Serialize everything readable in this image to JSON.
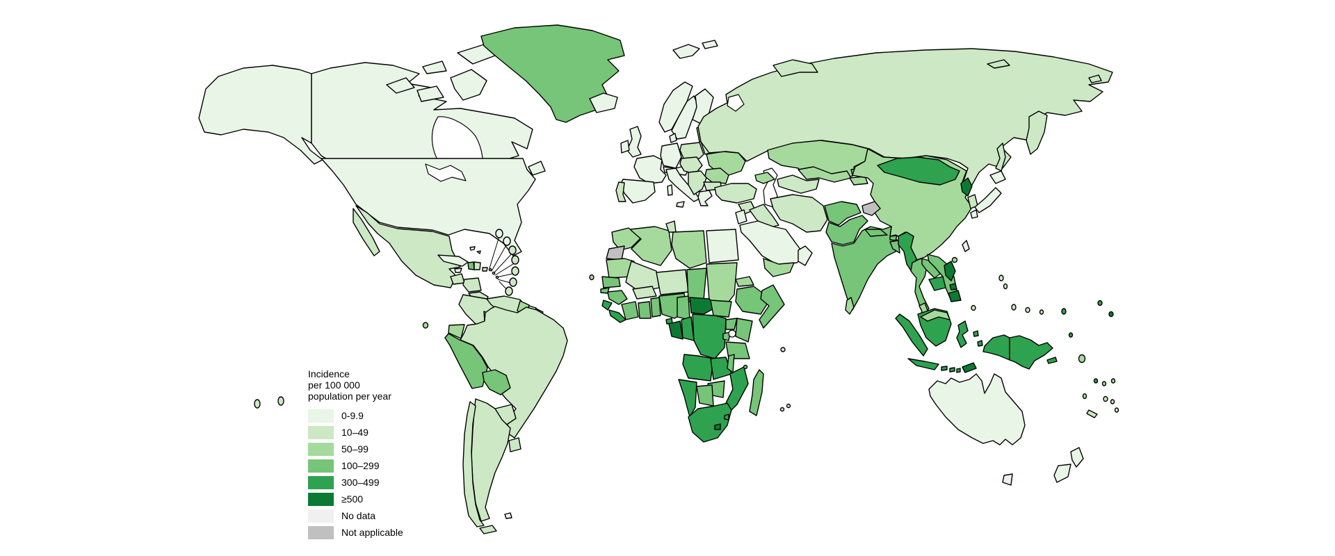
{
  "legend": {
    "title_lines": [
      "Incidence",
      "per 100 000",
      "population per year"
    ],
    "items": [
      {
        "label": "0-9.9",
        "key": "cat0",
        "color": "#e9f5e6"
      },
      {
        "label": "10–49",
        "key": "cat1",
        "color": "#cce8c4"
      },
      {
        "label": "50–99",
        "key": "cat2",
        "color": "#a6da9d"
      },
      {
        "label": "100–299",
        "key": "cat3",
        "color": "#76c578"
      },
      {
        "label": "300–499",
        "key": "cat4",
        "color": "#2ea24f"
      },
      {
        "label": "≥500",
        "key": "cat5",
        "color": "#0d7a34"
      },
      {
        "label": "No data",
        "key": "nodata",
        "color": "#f0f0f0"
      },
      {
        "label": "Not applicable",
        "key": "na",
        "color": "#c0c0c0"
      }
    ]
  },
  "map": {
    "sea_color": "#ffffff",
    "border_color": "#000000",
    "category_colors": {
      "cat0": "#e9f5e6",
      "cat1": "#cce8c4",
      "cat2": "#a6da9d",
      "cat3": "#76c578",
      "cat4": "#2ea24f",
      "cat5": "#0d7a34",
      "nodata": "#f0f0f0",
      "na": "#c0c0c0"
    },
    "regions": {
      "alaska": "cat0",
      "canada": "cat0",
      "arctic-1": "cat0",
      "arctic-2": "cat0",
      "arctic-3": "cat0",
      "arctic-4": "cat0",
      "arctic-5": "cat0",
      "newfoundland": "cat0",
      "usa": "cat0",
      "greenland": "cat3",
      "iceland": "cat0",
      "mexico": "cat1",
      "baja": "cat1",
      "guatemala": "cat1",
      "honduras-nicaragua": "cat1",
      "costarica-panama": "cat1",
      "cuba": "cat0",
      "jamaica": "cat0",
      "haiti": "cat3",
      "dominican-republic": "cat1",
      "puerto-rico": "cat1",
      "bahamas-1": "cat0",
      "bahamas-2": "cat0",
      "carib-1": "cat0",
      "carib-2": "cat0",
      "carib-3": "cat1",
      "carib-4": "cat1",
      "carib-5": "cat1",
      "carib-6": "cat1",
      "carib-7": "cat1",
      "carib-dot-1": "cat1",
      "carib-dot-2": "cat1",
      "carib-dot-3": "cat1",
      "colombia": "cat1",
      "venezuela": "cat1",
      "guyana": "cat2",
      "suriname": "cat1",
      "french-guiana": "cat1",
      "ecuador": "cat2",
      "galapagos": "cat2",
      "peru": "cat3",
      "brazil": "cat1",
      "bolivia": "cat3",
      "paraguay": "cat1",
      "uruguay": "cat1",
      "chile": "cat1",
      "argentina": "cat1",
      "tierra-del-fuego": "cat1",
      "falklands": "nodata",
      "french-polynesia-1": "cat1",
      "french-polynesia-2": "cat1",
      "uk": "cat0",
      "ireland": "cat0",
      "norway": "cat0",
      "sweden": "cat0",
      "finland": "cat0",
      "denmark": "cat0",
      "germany": "cat0",
      "france": "cat0",
      "spain": "cat0",
      "portugal": "cat1",
      "italy": "cat0",
      "sicily": "cat0",
      "sardinia": "cat0",
      "switzerland-austria": "cat0",
      "czech-hungary": "cat1",
      "poland": "cat1",
      "baltics": "cat2",
      "belarus": "cat1",
      "ukraine": "cat2",
      "romania-moldova": "cat2",
      "balkans": "cat1",
      "bulgaria": "cat1",
      "greece": "cat0",
      "russia": "cat1",
      "svalbard-1": "cat0",
      "svalbard-2": "cat0",
      "novaya-zemlya": "cat1",
      "wrangel": "cat1",
      "new-siberian": "cat1",
      "sakhalin": "cat1",
      "kamchatka": "cat1",
      "kazakhstan": "cat2",
      "uzbekistan": "cat2",
      "turkmenistan": "cat1",
      "kyrgyzstan": "cat3",
      "tajikistan": "cat2",
      "turkey": "cat1",
      "caucasus": "cat2",
      "syria": "cat1",
      "iraq": "cat1",
      "jordan-israel": "cat0",
      "saudi-arabia": "cat0",
      "yemen": "cat2",
      "oman": "cat0",
      "iran": "cat1",
      "afghanistan": "cat3",
      "pakistan": "cat3",
      "kashmir": "na",
      "india": "cat3",
      "nepal": "cat3",
      "bhutan": "cat3",
      "bangladesh": "cat3",
      "sri-lanka": "cat2",
      "myanmar": "cat4",
      "thailand": "cat3",
      "laos": "cat3",
      "cambodia": "cat4",
      "vietnam": "cat3",
      "hainan": "cat2",
      "china": "cat2",
      "mongolia": "cat4",
      "north-korea": "cat5",
      "south-korea": "cat1",
      "japan-hokkaido": "cat0",
      "japan-honshu": "cat0",
      "japan-kyushu": "cat0",
      "taiwan": "nodata",
      "malaysia-peninsular": "cat2",
      "malaysia-borneo": "cat2",
      "sumatra": "cat4",
      "kalimantan": "cat4",
      "java": "cat4",
      "sulawesi": "cat4",
      "moluccas-1": "cat4",
      "moluccas-2": "cat4",
      "sunda-1": "cat4",
      "sunda-2": "cat4",
      "sunda-3": "cat4",
      "timor-leste": "cat5",
      "new-guinea-west": "cat4",
      "papua-new-guinea": "cat4",
      "new-britain": "cat4",
      "philippines-luzon": "cat5",
      "philippines-visayas": "cat5",
      "philippines-mindanao": "cat5",
      "palau": "cat1",
      "australia": "cat0",
      "tasmania": "cat0",
      "new-zealand-north": "cat0",
      "new-zealand-south": "cat0",
      "marianas-1": "cat1",
      "marianas-2": "cat1",
      "micronesia-1": "cat1",
      "micronesia-2": "cat1",
      "micronesia-3": "cat1",
      "marshall-islands": "cat4",
      "nauru": "cat4",
      "kiribati-1": "cat4",
      "kiribati-2": "cat5",
      "solomon-islands": "cat2",
      "tuvalu": "cat4",
      "wallis": "cat2",
      "samoa": "cat2",
      "vanuatu": "cat2",
      "fiji-1": "cat1",
      "fiji-2": "cat1",
      "new-caledonia": "cat1",
      "tonga": "cat1",
      "morocco": "cat2",
      "western-sahara": "na",
      "algeria": "cat2",
      "tunisia": "cat1",
      "libya": "cat2",
      "egypt": "cat0",
      "mauritania": "cat2",
      "mali": "cat1",
      "senegal": "cat3",
      "guinea-bissau": "cat3",
      "guinea": "cat3",
      "sierra-leone": "cat4",
      "liberia": "cat4",
      "cote-divoire": "cat3",
      "ghana": "cat3",
      "togo-benin": "cat3",
      "burkina-faso": "cat1",
      "niger": "cat1",
      "nigeria": "cat3",
      "chad": "cat3",
      "sudan": "cat2",
      "eritrea": "cat2",
      "ethiopia": "cat3",
      "somalia": "cat3",
      "cameroon": "cat3",
      "central-african-republic": "cat5",
      "south-sudan": "cat3",
      "equatorial-guinea": "cat4",
      "gabon": "cat5",
      "congo": "cat4",
      "dr-congo": "cat4",
      "uganda": "cat3",
      "kenya": "cat3",
      "rwanda-burundi": "cat3",
      "tanzania": "cat3",
      "angola": "cat4",
      "zambia": "cat4",
      "malawi": "cat3",
      "mozambique": "cat4",
      "zimbabwe": "cat3",
      "botswana": "cat3",
      "namibia": "cat4",
      "south-africa": "cat4",
      "lesotho": "cat5",
      "eswatini": "cat4",
      "madagascar": "cat3",
      "comoros": "cat3",
      "cape-verde": "cat2",
      "seychelles": "cat1",
      "mauritius": "cat1",
      "reunion": "cat1"
    }
  }
}
